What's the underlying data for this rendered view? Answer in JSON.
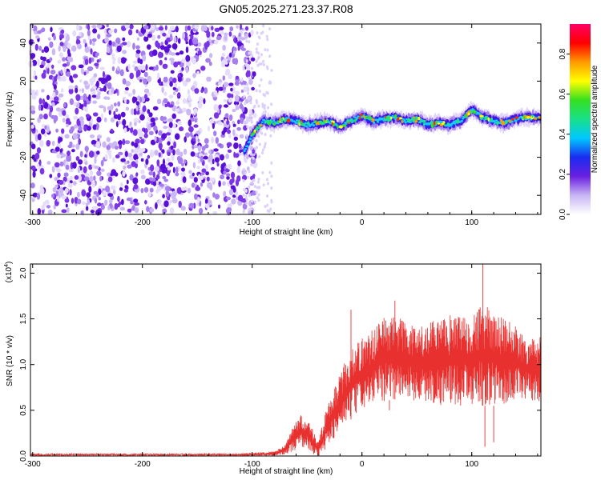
{
  "title": "GN05.2025.271.23.37.R08",
  "chart_data": [
    {
      "type": "heatmap",
      "panel": "spectrogram",
      "xlabel": "Height of straight line (km)",
      "ylabel": "Frequency (Hz)",
      "xlim": [
        -302,
        163
      ],
      "ylim": [
        -50,
        50
      ],
      "xticks": [
        -300,
        -200,
        -100,
        0,
        100
      ],
      "xtick_labels": [
        "-300",
        "-200",
        "-100",
        "0",
        "100"
      ],
      "yticks": [
        -40,
        -20,
        0,
        20,
        40
      ],
      "ytick_labels": [
        "-40",
        "-20",
        "0",
        "20",
        "40"
      ],
      "noise_region_x": [
        -302,
        -95
      ],
      "signal_ridge": {
        "x": [
          -107,
          -100,
          -90,
          -80,
          -70,
          -60,
          -50,
          -40,
          -30,
          -20,
          -10,
          0,
          10,
          20,
          30,
          40,
          50,
          60,
          70,
          80,
          90,
          100,
          110,
          120,
          130,
          140,
          150,
          163
        ],
        "freq": [
          -17,
          -8,
          -1,
          -2,
          0,
          -1,
          -3,
          -2,
          -1,
          -4,
          -1,
          2,
          -1,
          0,
          1,
          -1,
          0,
          -3,
          -2,
          -3,
          -1,
          5,
          1,
          -1,
          -2,
          0,
          1,
          1
        ]
      },
      "colorbar": {
        "label": "Normalized spectral amplitude",
        "range": [
          0,
          0.95
        ],
        "ticks": [
          0.0,
          0.2,
          0.4,
          0.6,
          0.8
        ],
        "tick_labels": [
          "0.0",
          "0.2",
          "0.4",
          "0.6",
          "0.8"
        ],
        "colors": [
          "#ffffff",
          "#c8b6f5",
          "#6a1fe0",
          "#1a2cf0",
          "#00c8ff",
          "#18e08a",
          "#35e020",
          "#ffff00",
          "#ff9a00",
          "#ff0000",
          "#ff0066"
        ]
      }
    },
    {
      "type": "line",
      "panel": "snr",
      "xlabel": "Height of straight line (km)",
      "ylabel": "SNR (10 * v/v)",
      "y_multiplier": "(x10",
      "y_exponent": "4",
      "y_multiplier_close": ")",
      "xlim": [
        -302,
        163
      ],
      "ylim": [
        0,
        2.1
      ],
      "xticks": [
        -300,
        -200,
        -100,
        0,
        100
      ],
      "xtick_labels": [
        "-300",
        "-200",
        "-100",
        "0",
        "100"
      ],
      "yticks": [
        0.0,
        0.5,
        1.0,
        1.5,
        2.0
      ],
      "ytick_labels": [
        "0.0",
        "0.5",
        "1.0",
        "1.5",
        "2.0"
      ],
      "line_color": "#e8312f",
      "envelope": {
        "x": [
          -302,
          -110,
          -80,
          -70,
          -62,
          -56,
          -50,
          -45,
          -40,
          -35,
          -30,
          -25,
          -20,
          -15,
          -10,
          0,
          10,
          20,
          30,
          40,
          50,
          60,
          70,
          80,
          90,
          100,
          110,
          120,
          130,
          140,
          150,
          163
        ],
        "low": [
          0.0,
          0.0,
          0.0,
          0.02,
          0.05,
          0.1,
          0.08,
          0.02,
          0.0,
          0.02,
          0.12,
          0.2,
          0.25,
          0.35,
          0.4,
          0.5,
          0.55,
          0.6,
          0.62,
          0.62,
          0.6,
          0.58,
          0.55,
          0.55,
          0.55,
          0.55,
          0.55,
          0.55,
          0.55,
          0.6,
          0.6,
          0.6
        ],
        "high": [
          0.03,
          0.03,
          0.05,
          0.12,
          0.35,
          0.45,
          0.4,
          0.3,
          0.15,
          0.4,
          0.65,
          0.75,
          0.9,
          1.05,
          1.15,
          1.3,
          1.4,
          1.55,
          1.55,
          1.5,
          1.4,
          1.45,
          1.5,
          1.55,
          1.55,
          1.6,
          1.65,
          1.6,
          1.5,
          1.45,
          1.3,
          1.3
        ]
      },
      "spikes": [
        {
          "x": -10,
          "y": 1.6
        },
        {
          "x": 30,
          "y": 1.7
        },
        {
          "x": 110,
          "y": 2.1
        },
        {
          "x": 112,
          "y": 0.1
        },
        {
          "x": 120,
          "y": 0.15
        },
        {
          "x": 25,
          "y": 0.5
        }
      ]
    }
  ]
}
